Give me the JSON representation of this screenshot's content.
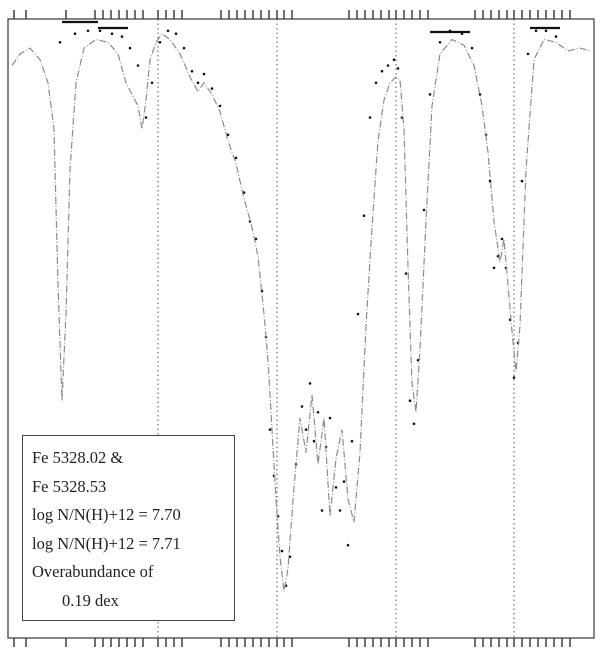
{
  "chart_data": {
    "type": "line",
    "title": "",
    "xlabel": "",
    "ylabel": "",
    "grid": false,
    "markers_x": [
      158,
      277,
      396,
      514
    ],
    "series": [
      {
        "style": "observed-dots",
        "color": "#111111",
        "x": [
          60,
          75,
          88,
          100,
          112,
          122,
          130,
          138,
          146,
          152,
          160,
          168,
          176,
          184,
          192,
          198,
          204,
          212,
          220,
          228,
          236,
          244,
          250,
          256,
          262,
          266,
          270,
          274,
          278,
          282,
          286,
          290,
          296,
          302,
          306,
          310,
          314,
          318,
          322,
          326,
          330,
          336,
          340,
          344,
          348,
          352,
          358,
          364,
          370,
          376,
          382,
          388,
          394,
          398,
          402,
          406,
          410,
          414,
          418,
          424,
          430,
          440,
          450,
          462,
          472,
          480,
          486,
          490,
          494,
          498,
          502,
          506,
          510,
          514,
          518,
          522,
          528,
          536,
          546,
          556
        ],
        "y": [
          0.97,
          0.985,
          0.99,
          0.99,
          0.985,
          0.98,
          0.96,
          0.93,
          0.84,
          0.9,
          0.97,
          0.99,
          0.985,
          0.96,
          0.92,
          0.9,
          0.915,
          0.89,
          0.86,
          0.81,
          0.77,
          0.71,
          0.66,
          0.63,
          0.54,
          0.46,
          0.3,
          0.22,
          0.15,
          0.09,
          0.03,
          0.08,
          0.24,
          0.34,
          0.3,
          0.38,
          0.28,
          0.33,
          0.16,
          0.27,
          0.32,
          0.2,
          0.16,
          0.21,
          0.1,
          0.28,
          0.5,
          0.67,
          0.84,
          0.9,
          0.92,
          0.93,
          0.94,
          0.925,
          0.84,
          0.57,
          0.35,
          0.31,
          0.42,
          0.68,
          0.88,
          0.97,
          0.99,
          0.985,
          0.96,
          0.88,
          0.81,
          0.73,
          0.58,
          0.6,
          0.63,
          0.58,
          0.49,
          0.39,
          0.45,
          0.73,
          0.95,
          0.99,
          0.99,
          0.98
        ]
      },
      {
        "style": "synthetic-line",
        "color": "#8c8c8c",
        "x": [
          12,
          20,
          30,
          40,
          48,
          54,
          58,
          62,
          66,
          70,
          76,
          84,
          96,
          108,
          118,
          126,
          132,
          138,
          142,
          146,
          150,
          156,
          162,
          170,
          180,
          190,
          198,
          204,
          212,
          220,
          228,
          236,
          244,
          252,
          258,
          264,
          268,
          272,
          276,
          280,
          284,
          288,
          294,
          300,
          306,
          312,
          318,
          324,
          330,
          336,
          342,
          348,
          354,
          360,
          366,
          372,
          378,
          384,
          390,
          396,
          400,
          404,
          408,
          412,
          416,
          420,
          426,
          432,
          440,
          452,
          464,
          474,
          482,
          488,
          494,
          500,
          504,
          508,
          512,
          516,
          520,
          526,
          534,
          544,
          556,
          568,
          580,
          590
        ],
        "y": [
          0.93,
          0.95,
          0.96,
          0.94,
          0.9,
          0.82,
          0.55,
          0.35,
          0.5,
          0.75,
          0.9,
          0.96,
          0.975,
          0.97,
          0.95,
          0.9,
          0.88,
          0.86,
          0.82,
          0.87,
          0.94,
          0.97,
          0.985,
          0.975,
          0.95,
          0.91,
          0.885,
          0.9,
          0.88,
          0.85,
          0.8,
          0.76,
          0.7,
          0.65,
          0.6,
          0.5,
          0.42,
          0.3,
          0.18,
          0.08,
          0.02,
          0.06,
          0.2,
          0.32,
          0.26,
          0.36,
          0.24,
          0.32,
          0.15,
          0.25,
          0.3,
          0.18,
          0.14,
          0.26,
          0.48,
          0.65,
          0.8,
          0.87,
          0.9,
          0.91,
          0.905,
          0.82,
          0.58,
          0.38,
          0.33,
          0.44,
          0.66,
          0.86,
          0.95,
          0.975,
          0.965,
          0.93,
          0.86,
          0.78,
          0.66,
          0.59,
          0.63,
          0.55,
          0.47,
          0.4,
          0.48,
          0.75,
          0.94,
          0.975,
          0.97,
          0.955,
          0.96,
          0.955
        ]
      }
    ],
    "legend_lines": [
      "Fe 5328.02 &",
      "Fe 5328.53",
      "log N/N(H)+12 = 7.70",
      "log N/N(H)+12 = 7.71",
      "Overabundance of",
      "0.19 dex"
    ]
  }
}
